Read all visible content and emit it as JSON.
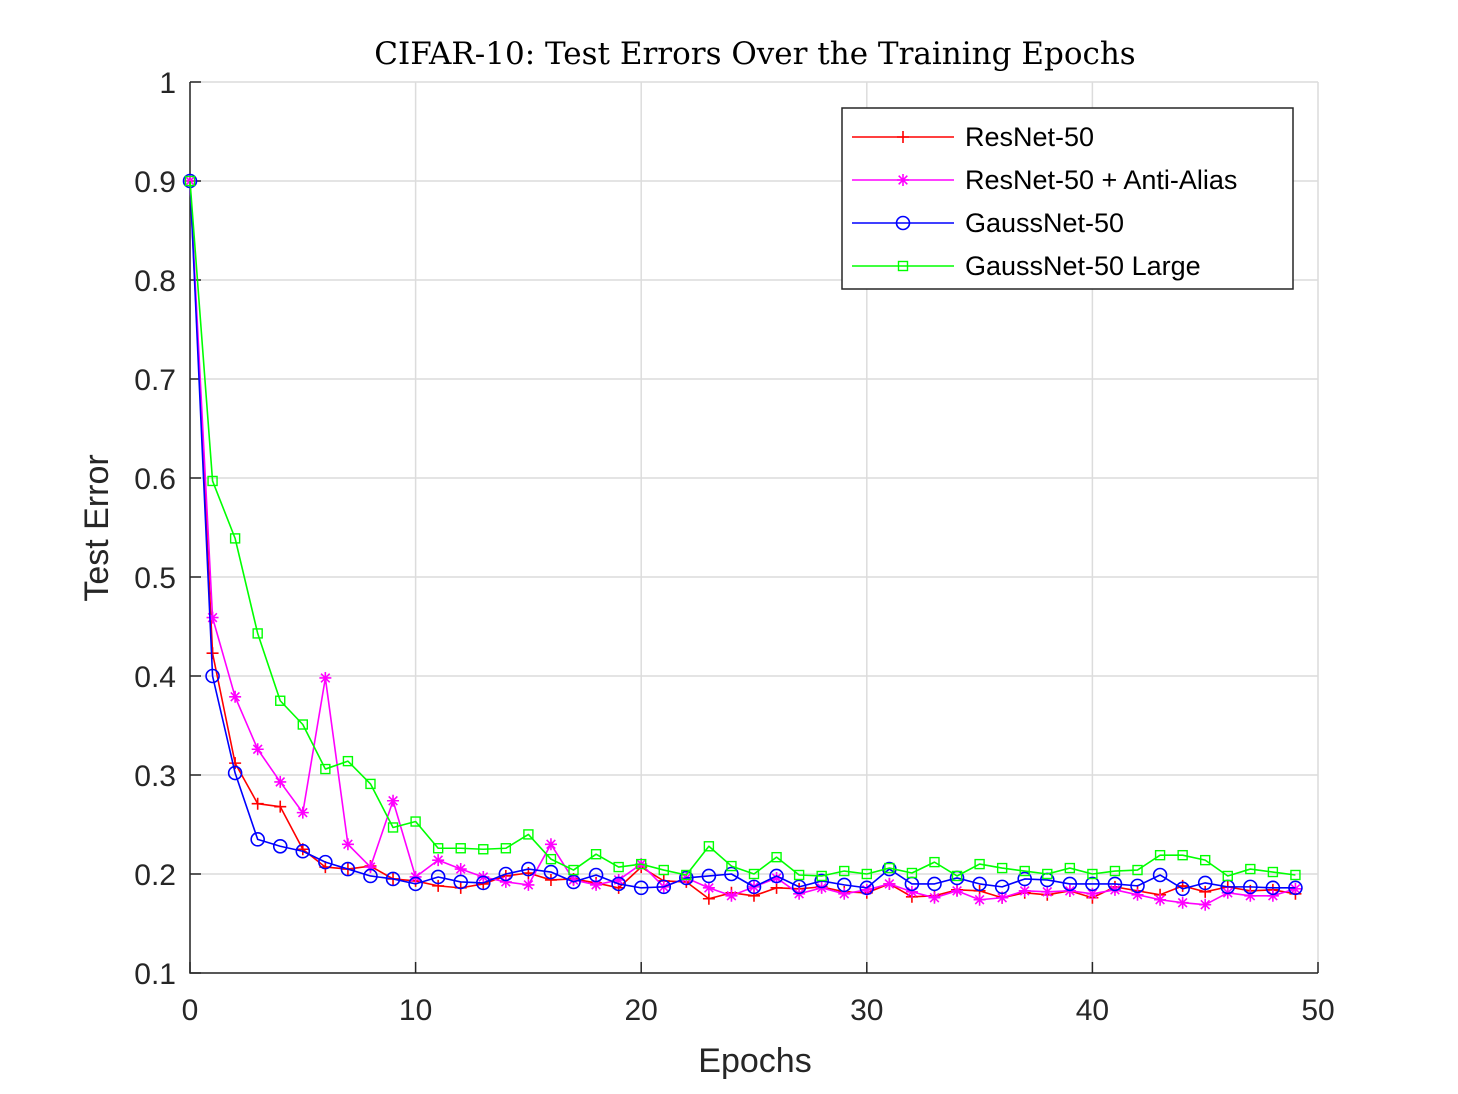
{
  "chart_data": {
    "type": "line",
    "title": "CIFAR-10: Test Errors Over the Training Epochs",
    "xlabel": "Epochs",
    "ylabel": "Test Error",
    "xlim": [
      0,
      50
    ],
    "ylim": [
      0.1,
      1
    ],
    "xticks": [
      0,
      10,
      20,
      30,
      40,
      50
    ],
    "yticks": [
      0.1,
      0.2,
      0.3,
      0.4,
      0.5,
      0.6,
      0.7,
      0.8,
      0.9,
      1
    ],
    "xtick_labels": [
      "0",
      "10",
      "20",
      "30",
      "40",
      "50"
    ],
    "ytick_labels": [
      "0.1",
      "0.2",
      "0.3",
      "0.4",
      "0.5",
      "0.6",
      "0.7",
      "0.8",
      "0.9",
      "1"
    ],
    "grid": true,
    "legend_position": "top-right",
    "x": [
      0,
      1,
      2,
      3,
      4,
      5,
      6,
      7,
      8,
      9,
      10,
      11,
      12,
      13,
      14,
      15,
      16,
      17,
      18,
      19,
      20,
      21,
      22,
      23,
      24,
      25,
      26,
      27,
      28,
      29,
      30,
      31,
      32,
      33,
      34,
      35,
      36,
      37,
      38,
      39,
      40,
      41,
      42,
      43,
      44,
      45,
      46,
      47,
      48,
      49
    ],
    "series": [
      {
        "name": "ResNet-50",
        "color": "#ff0000",
        "marker": "plus",
        "values": [
          0.9,
          0.423,
          0.312,
          0.271,
          0.268,
          0.225,
          0.207,
          0.205,
          0.208,
          0.195,
          0.193,
          0.188,
          0.186,
          0.19,
          0.198,
          0.201,
          0.194,
          0.195,
          0.191,
          0.186,
          0.207,
          0.193,
          0.192,
          0.175,
          0.181,
          0.178,
          0.186,
          0.185,
          0.187,
          0.182,
          0.181,
          0.19,
          0.177,
          0.178,
          0.184,
          0.183,
          0.176,
          0.181,
          0.179,
          0.183,
          0.176,
          0.187,
          0.183,
          0.179,
          0.188,
          0.182,
          0.187,
          0.183,
          0.184,
          0.18
        ]
      },
      {
        "name": "ResNet-50 + Anti-Alias",
        "color": "#ff00ff",
        "marker": "asterisk",
        "values": [
          0.9,
          0.459,
          0.379,
          0.326,
          0.293,
          0.262,
          0.398,
          0.23,
          0.207,
          0.274,
          0.197,
          0.214,
          0.205,
          0.197,
          0.192,
          0.189,
          0.23,
          0.194,
          0.189,
          0.194,
          0.21,
          0.187,
          0.196,
          0.186,
          0.178,
          0.187,
          0.196,
          0.18,
          0.186,
          0.18,
          0.184,
          0.19,
          0.182,
          0.176,
          0.183,
          0.174,
          0.176,
          0.183,
          0.182,
          0.183,
          0.18,
          0.184,
          0.179,
          0.174,
          0.171,
          0.169,
          0.181,
          0.178,
          0.178,
          0.185
        ]
      },
      {
        "name": "GaussNet-50",
        "color": "#0000ff",
        "marker": "circle",
        "values": [
          0.9,
          0.4,
          0.302,
          0.235,
          0.228,
          0.223,
          0.212,
          0.205,
          0.198,
          0.195,
          0.19,
          0.197,
          0.192,
          0.191,
          0.2,
          0.205,
          0.202,
          0.192,
          0.199,
          0.19,
          0.186,
          0.187,
          0.196,
          0.198,
          0.2,
          0.187,
          0.198,
          0.187,
          0.193,
          0.189,
          0.186,
          0.205,
          0.19,
          0.19,
          0.196,
          0.19,
          0.187,
          0.195,
          0.194,
          0.19,
          0.19,
          0.19,
          0.188,
          0.199,
          0.185,
          0.191,
          0.187,
          0.187,
          0.186,
          0.186
        ]
      },
      {
        "name": "GaussNet-50 Large",
        "color": "#00ff00",
        "marker": "square",
        "values": [
          0.9,
          0.597,
          0.539,
          0.443,
          0.375,
          0.351,
          0.306,
          0.314,
          0.291,
          0.247,
          0.253,
          0.226,
          0.226,
          0.225,
          0.226,
          0.24,
          0.215,
          0.204,
          0.22,
          0.207,
          0.21,
          0.204,
          0.199,
          0.228,
          0.208,
          0.2,
          0.217,
          0.199,
          0.198,
          0.203,
          0.2,
          0.206,
          0.201,
          0.212,
          0.198,
          0.21,
          0.206,
          0.203,
          0.2,
          0.206,
          0.2,
          0.203,
          0.204,
          0.219,
          0.219,
          0.214,
          0.198,
          0.205,
          0.202,
          0.199
        ]
      }
    ]
  }
}
